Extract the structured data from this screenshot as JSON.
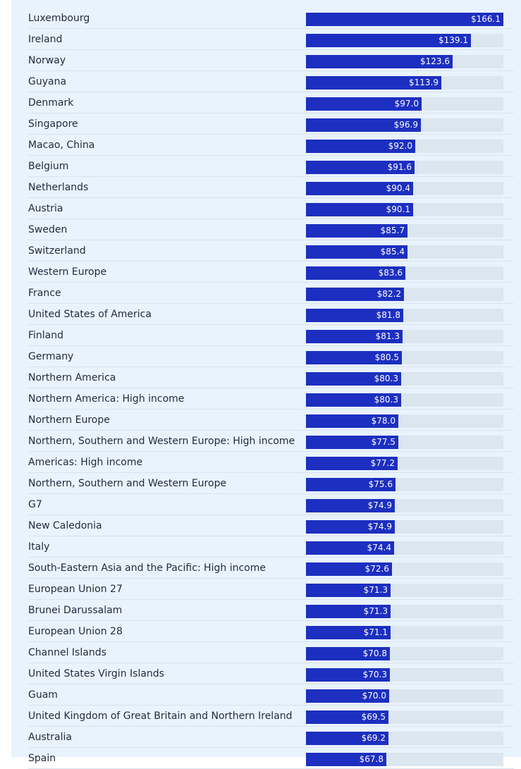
{
  "chart_data": {
    "type": "bar",
    "orientation": "horizontal",
    "value_prefix": "$",
    "xlim": [
      0,
      166.1
    ],
    "categories": [
      "Luxembourg",
      "Ireland",
      "Norway",
      "Guyana",
      "Denmark",
      "Singapore",
      "Macao, China",
      "Belgium",
      "Netherlands",
      "Austria",
      "Sweden",
      "Switzerland",
      "Western Europe",
      "France",
      "United States of America",
      "Finland",
      "Germany",
      "Northern America",
      "Northern America: High income",
      "Northern Europe",
      "Northern, Southern and Western Europe: High income",
      "Americas: High income",
      "Northern, Southern and Western Europe",
      "G7",
      "New Caledonia",
      "Italy",
      "South-Eastern Asia and the Pacific: High income",
      "European Union 27",
      "Brunei Darussalam",
      "European Union 28",
      "Channel Islands",
      "United States Virgin Islands",
      "Guam",
      "United Kingdom of Great Britain and Northern Ireland",
      "Australia",
      "Spain"
    ],
    "values": [
      166.1,
      139.1,
      123.6,
      113.9,
      97.0,
      96.9,
      92.0,
      91.6,
      90.4,
      90.1,
      85.7,
      85.4,
      83.6,
      82.2,
      81.8,
      81.3,
      80.5,
      80.3,
      80.3,
      78.0,
      77.5,
      77.2,
      75.6,
      74.9,
      74.9,
      74.4,
      72.6,
      71.3,
      71.3,
      71.1,
      70.8,
      70.3,
      70.0,
      69.5,
      69.2,
      67.8
    ],
    "value_labels": [
      "$166.1",
      "$139.1",
      "$123.6",
      "$113.9",
      "$97.0",
      "$96.9",
      "$92.0",
      "$91.6",
      "$90.4",
      "$90.1",
      "$85.7",
      "$85.4",
      "$83.6",
      "$82.2",
      "$81.8",
      "$81.3",
      "$80.5",
      "$80.3",
      "$80.3",
      "$78.0",
      "$77.5",
      "$77.2",
      "$75.6",
      "$74.9",
      "$74.9",
      "$74.4",
      "$72.6",
      "$71.3",
      "$71.3",
      "$71.1",
      "$70.8",
      "$70.3",
      "$70.0",
      "$69.5",
      "$69.2",
      "$67.8"
    ],
    "colors": {
      "bar": "#1c2fc0",
      "track": "#dce6ef",
      "background": "#e9f3fd",
      "label_text": "#1f2a3d",
      "value_text": "#ffffff"
    }
  }
}
